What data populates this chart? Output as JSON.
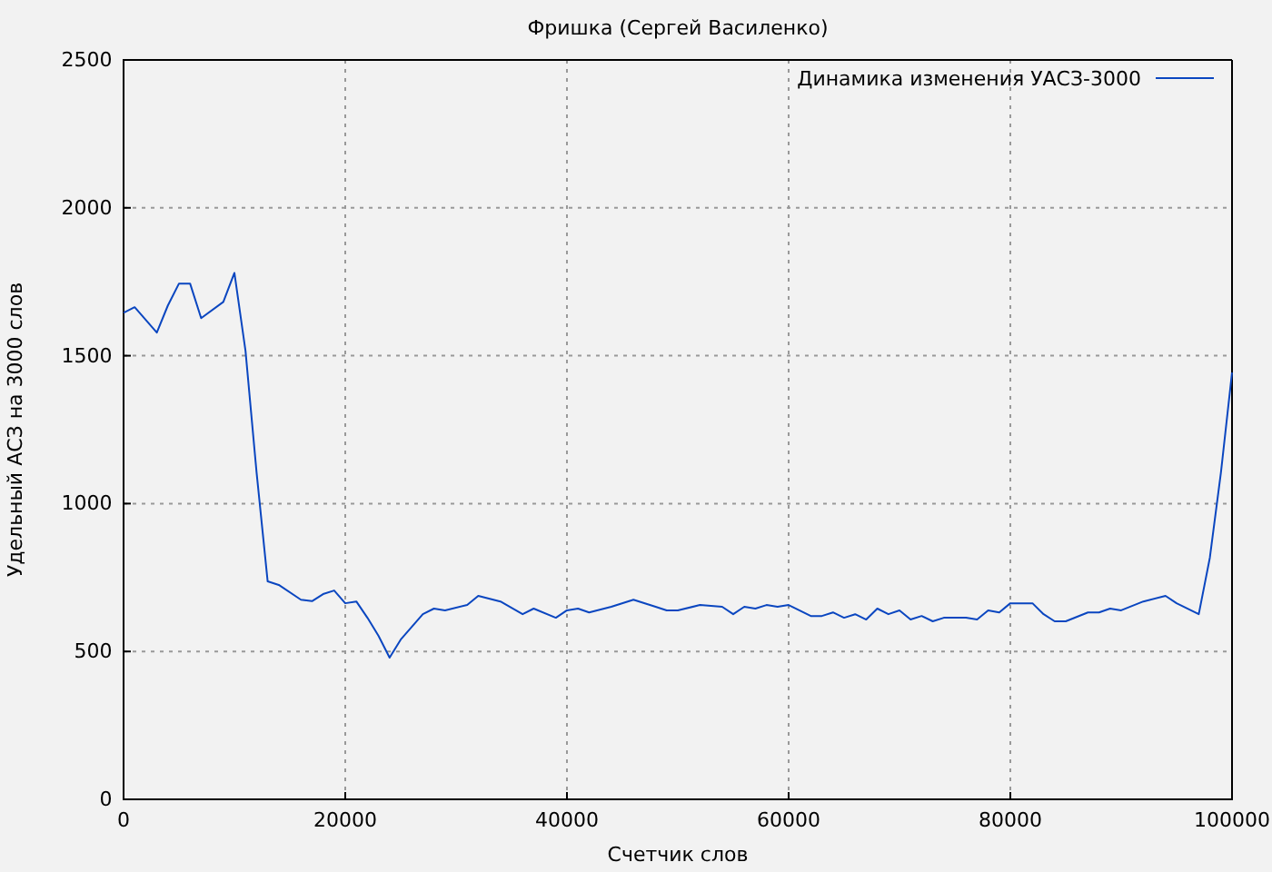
{
  "chart_data": {
    "type": "line",
    "title": "Фришка (Сергей Василенко)",
    "xlabel": "Счетчик слов",
    "ylabel": "Удельный АСЗ на 3000 слов",
    "x": [
      0,
      1000,
      3000,
      4000,
      5000,
      6000,
      7000,
      9000,
      10000,
      11000,
      12000,
      13000,
      14000,
      16000,
      17000,
      18000,
      19000,
      20000,
      21000,
      22000,
      23000,
      24000,
      25000,
      27000,
      28000,
      29000,
      31000,
      32000,
      34000,
      36000,
      37000,
      39000,
      40000,
      41000,
      42000,
      44000,
      46000,
      48000,
      49000,
      50000,
      52000,
      54000,
      55000,
      56000,
      57000,
      58000,
      59000,
      60000,
      62000,
      63000,
      64000,
      65000,
      66000,
      67000,
      68000,
      69000,
      70000,
      71000,
      72000,
      73000,
      74000,
      76000,
      77000,
      78000,
      79000,
      80000,
      82000,
      83000,
      84000,
      85000,
      87000,
      88000,
      89000,
      90000,
      92000,
      94000,
      95000,
      97000,
      98000,
      99000,
      100000
    ],
    "series": [
      {
        "name": "Динамика изменения УАСЗ-3000",
        "color": "#0a46c0",
        "values": [
          1645,
          1664,
          1578,
          1670,
          1744,
          1744,
          1627,
          1682,
          1780,
          1517,
          1105,
          737,
          725,
          675,
          670,
          694,
          706,
          663,
          669,
          614,
          553,
          479,
          540,
          626,
          645,
          639,
          657,
          688,
          669,
          626,
          645,
          614,
          639,
          645,
          632,
          651,
          675,
          651,
          639,
          639,
          657,
          651,
          626,
          651,
          645,
          657,
          651,
          657,
          620,
          620,
          632,
          614,
          626,
          608,
          645,
          626,
          639,
          608,
          620,
          602,
          614,
          614,
          608,
          639,
          632,
          663,
          663,
          626,
          602,
          602,
          632,
          632,
          645,
          639,
          669,
          688,
          663,
          626,
          817,
          1105,
          1443
        ]
      }
    ],
    "xlim": [
      0,
      100000
    ],
    "ylim": [
      0,
      2500
    ],
    "xticks": [
      0,
      20000,
      40000,
      60000,
      80000,
      100000
    ],
    "yticks": [
      0,
      500,
      1000,
      1500,
      2000,
      2500
    ],
    "grid": true,
    "legend": "top right",
    "marker": "none",
    "line_style": "solid"
  }
}
